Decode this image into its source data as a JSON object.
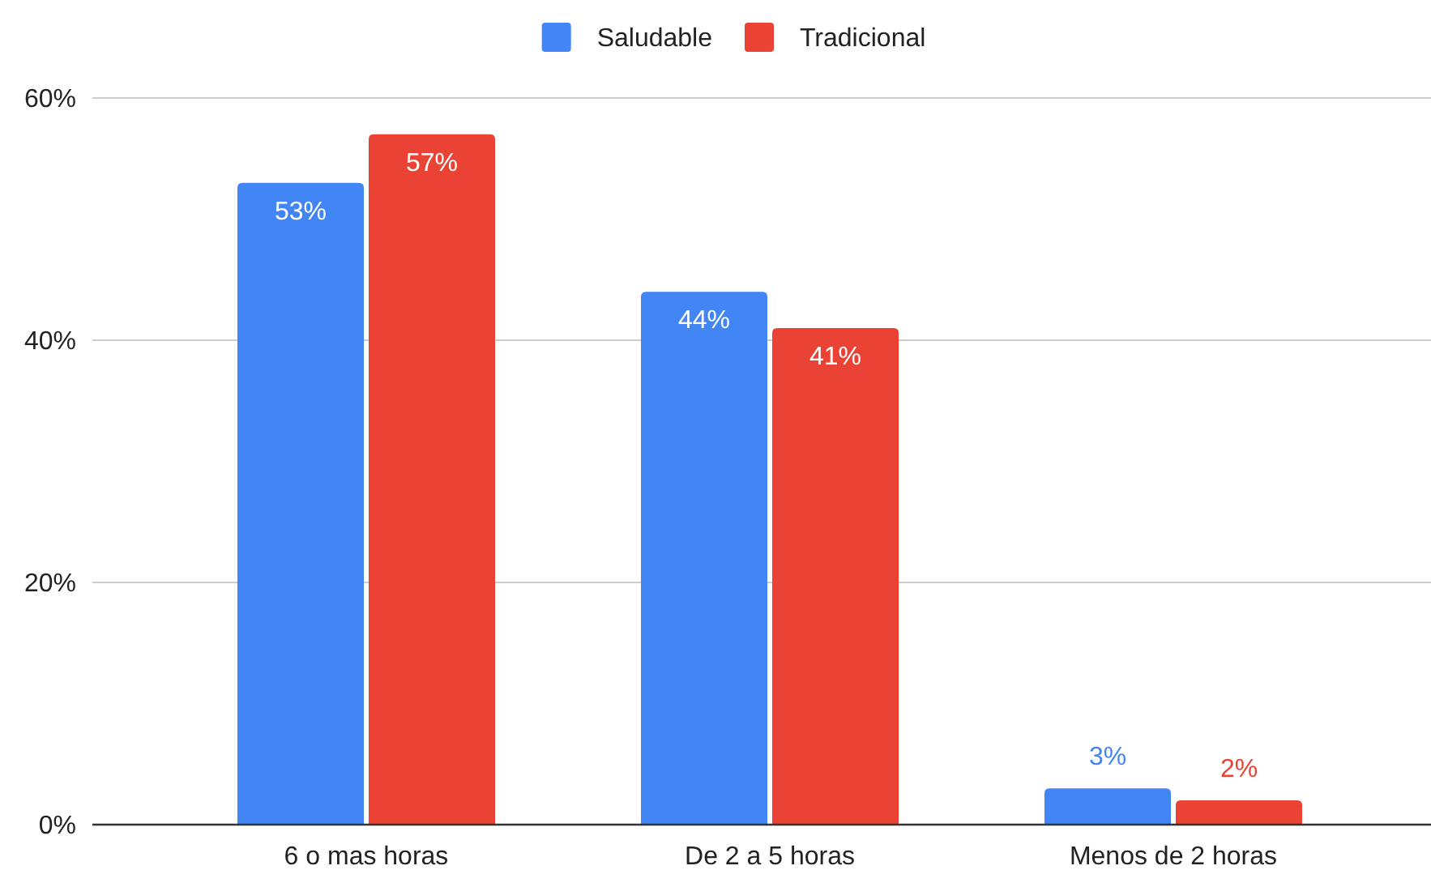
{
  "chart_data": {
    "type": "bar",
    "categories": [
      "6 o mas horas",
      "De 2 a 5 horas",
      "Menos de 2 horas"
    ],
    "series": [
      {
        "name": "Saludable",
        "color": "#4285f4",
        "values": [
          53,
          44,
          3
        ],
        "value_labels": [
          "53%",
          "44%",
          "3%"
        ]
      },
      {
        "name": "Tradicional",
        "color": "#ea4335",
        "values": [
          57,
          41,
          2
        ],
        "value_labels": [
          "57%",
          "41%",
          "2%"
        ]
      }
    ],
    "ylim": [
      0,
      60
    ],
    "yticks": [
      {
        "value": 0,
        "label": "0%"
      },
      {
        "value": 20,
        "label": "20%"
      },
      {
        "value": 40,
        "label": "40%"
      },
      {
        "value": 60,
        "label": "60%"
      }
    ],
    "grid": "y",
    "legend": "top"
  }
}
